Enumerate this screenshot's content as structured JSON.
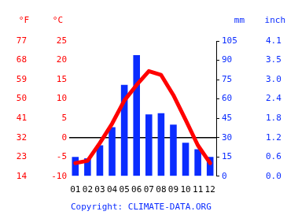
{
  "chart_data": {
    "type": "bar",
    "categories": [
      "01",
      "02",
      "03",
      "04",
      "05",
      "06",
      "07",
      "08",
      "09",
      "10",
      "11",
      "12"
    ],
    "series": [
      {
        "type": "line",
        "color": "#ff0000",
        "values": [
          -6.6,
          -6,
          -1.4,
          3.6,
          9.6,
          13.6,
          17.2,
          16.2,
          11,
          4.6,
          -2,
          -6.6
        ]
      },
      {
        "type": "bar",
        "color": "#0a2cff",
        "axis": "y2",
        "values": [
          15,
          14,
          24,
          38,
          71,
          94,
          48,
          49,
          40,
          26,
          21,
          15
        ]
      }
    ],
    "ylabel": "°C",
    "ylim": [
      -10,
      25
    ],
    "yticks": [
      -10,
      -5,
      0,
      5,
      10,
      15,
      20,
      25
    ],
    "y2label": "mm",
    "y2lim": [
      0,
      105
    ],
    "y2ticks": [
      0,
      15,
      30,
      45,
      60,
      75,
      90,
      105
    ],
    "y3label": "°F",
    "y3lim": [
      14,
      77
    ],
    "y3ticks": [
      14,
      23,
      32,
      41,
      50,
      59,
      68,
      77
    ],
    "y4label": "inch",
    "y4lim": [
      0,
      4.134
    ],
    "y4ticks": [
      {
        "value": 0,
        "label": "0.0"
      },
      {
        "value": 0.591,
        "label": "0.6"
      },
      {
        "value": 1.181,
        "label": "1.2"
      },
      {
        "value": 1.772,
        "label": "1.8"
      },
      {
        "value": 2.362,
        "label": "2.4"
      },
      {
        "value": 2.953,
        "label": "3.0"
      },
      {
        "value": 3.543,
        "label": "3.5"
      },
      {
        "value": 4.134,
        "label": "4.1"
      }
    ],
    "source": "Copyright: CLIMATE-DATA.ORG",
    "grid": false
  }
}
